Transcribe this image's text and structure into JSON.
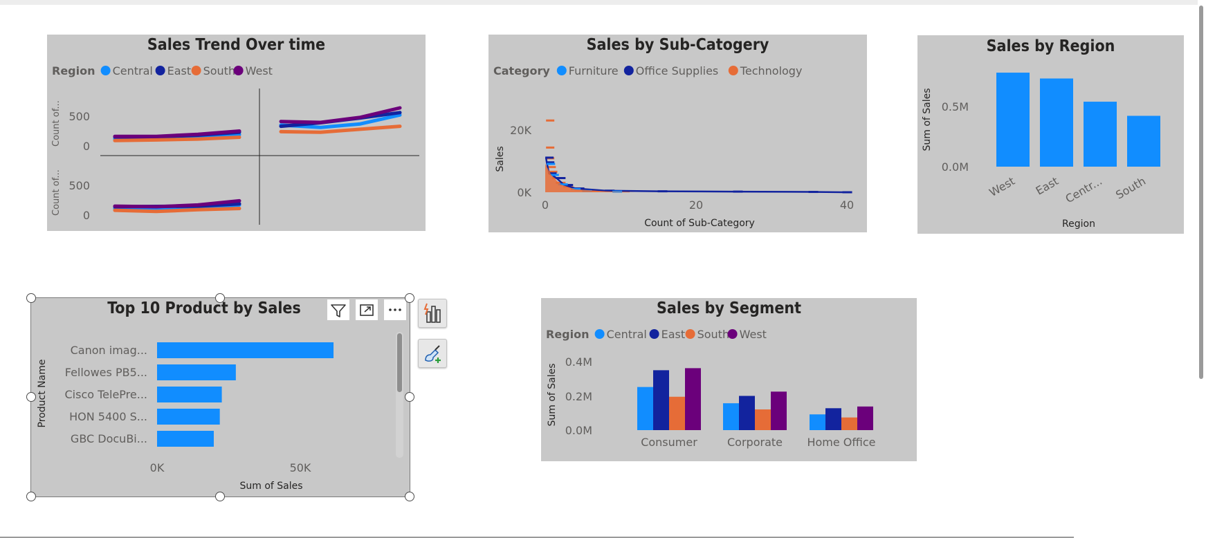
{
  "colors": {
    "central": "#118dff",
    "east": "#12239e",
    "south": "#e66c37",
    "west": "#6b007b",
    "panel_bg": "#c8c8c8",
    "single_bar": "#118dff"
  },
  "visual_header": {
    "filter_icon": "filter-icon",
    "focus_icon": "focus-mode-icon",
    "more_icon": "more-options-icon"
  },
  "side_panel": {
    "build_icon": "build-visual-icon",
    "format_icon": "format-visual-icon"
  },
  "chart_data": [
    {
      "id": "trend",
      "type": "line",
      "title": "Sales Trend Over time",
      "legend_title": "Region",
      "legend": [
        "Central",
        "East",
        "South",
        "West"
      ],
      "ylabel_top": "Count of...",
      "ylabel_bottom": "Count of...",
      "yticks": [
        "500",
        "0"
      ],
      "ylim": [
        -200,
        900
      ],
      "panels": [
        {
          "name": "top-left",
          "series": [
            {
              "name": "Central",
              "values": [
                120,
                125,
                150,
                190
              ]
            },
            {
              "name": "East",
              "values": [
                150,
                150,
                180,
                230
              ]
            },
            {
              "name": "South",
              "values": [
                90,
                100,
                115,
                145
              ]
            },
            {
              "name": "West",
              "values": [
                160,
                160,
                195,
                250
              ]
            }
          ]
        },
        {
          "name": "top-right",
          "series": [
            {
              "name": "Central",
              "values": [
                350,
                310,
                370,
                520
              ]
            },
            {
              "name": "East",
              "values": [
                330,
                390,
                470,
                560
              ]
            },
            {
              "name": "South",
              "values": [
                240,
                230,
                280,
                330
              ]
            },
            {
              "name": "West",
              "values": [
                410,
                395,
                480,
                640
              ]
            }
          ]
        },
        {
          "name": "bottom-left",
          "series": [
            {
              "name": "Central",
              "values": [
                110,
                115,
                125,
                170
              ]
            },
            {
              "name": "East",
              "values": [
                140,
                145,
                150,
                190
              ]
            },
            {
              "name": "South",
              "values": [
                80,
                60,
                90,
                110
              ]
            },
            {
              "name": "West",
              "values": [
                150,
                140,
                170,
                240
              ]
            }
          ]
        }
      ]
    },
    {
      "id": "subcategory",
      "type": "scatter",
      "title": "Sales by Sub-Catogery",
      "legend_title": "Category",
      "legend": [
        "Furniture",
        "Office Supplies",
        "Technology"
      ],
      "xlabel": "Count of Sub-Category",
      "ylabel": "Sales",
      "xticks": [
        "0",
        "20",
        "40"
      ],
      "yticks": [
        "20K",
        "0K"
      ],
      "xlim": [
        0,
        40
      ],
      "ylim": [
        0,
        23000
      ],
      "series": [
        {
          "name": "Technology",
          "points": [
            [
              0.2,
              22800
            ],
            [
              0.2,
              14200
            ],
            [
              0.2,
              10800
            ],
            [
              0.4,
              8000
            ],
            [
              0.6,
              6500
            ],
            [
              1,
              4500
            ],
            [
              1.5,
              3000
            ],
            [
              2.5,
              1800
            ],
            [
              4,
              900
            ],
            [
              6,
              500
            ],
            [
              10,
              300
            ]
          ]
        },
        {
          "name": "Office Supplies",
          "points": [
            [
              0.1,
              11000
            ],
            [
              0.2,
              9500
            ],
            [
              0.5,
              6000
            ],
            [
              1.5,
              4500
            ],
            [
              2.5,
              2300
            ],
            [
              4,
              1200
            ],
            [
              8,
              500
            ],
            [
              15,
              300
            ],
            [
              25,
              200
            ],
            [
              35,
              100
            ],
            [
              39.5,
              0
            ]
          ]
        },
        {
          "name": "Furniture",
          "points": [
            [
              0.3,
              9000
            ],
            [
              0.8,
              5500
            ],
            [
              1.8,
              2500
            ],
            [
              3.5,
              1000
            ],
            [
              5,
              400
            ],
            [
              9,
              200
            ]
          ]
        }
      ]
    },
    {
      "id": "region",
      "type": "bar",
      "title": "Sales by Region",
      "xlabel": "Region",
      "ylabel": "Sum of Sales",
      "categories": [
        "West",
        "East",
        "Centr...",
        "South"
      ],
      "values": [
        725000,
        680000,
        501000,
        392000
      ],
      "yticks": [
        "0.5M",
        "0.0M"
      ],
      "ylim": [
        0,
        800000
      ]
    },
    {
      "id": "products",
      "type": "bar",
      "orientation": "horizontal",
      "title": "Top 10 Product by Sales",
      "xlabel": "Sum of Sales",
      "ylabel": "Product Name",
      "categories": [
        "Canon imag...",
        "Fellowes PB5...",
        "Cisco TelePre...",
        "HON 5400 S...",
        "GBC DocuBi..."
      ],
      "values": [
        61600,
        27500,
        22600,
        21900,
        19800
      ],
      "xticks": [
        "0K",
        "50K"
      ],
      "xlim": [
        0,
        70000
      ]
    },
    {
      "id": "segment",
      "type": "bar",
      "title": "Sales by Segment",
      "legend_title": "Region",
      "legend": [
        "Central",
        "East",
        "South",
        "West"
      ],
      "ylabel": "Sum of Sales",
      "categories": [
        "Consumer",
        "Corporate",
        "Home Office"
      ],
      "series": [
        {
          "name": "Central",
          "values": [
            252000,
            157000,
            92000
          ]
        },
        {
          "name": "East",
          "values": [
            350000,
            200000,
            128000
          ]
        },
        {
          "name": "South",
          "values": [
            195000,
            121000,
            74000
          ]
        },
        {
          "name": "West",
          "values": [
            362000,
            225000,
            138000
          ]
        }
      ],
      "yticks": [
        "0.4M",
        "0.2M",
        "0.0M"
      ],
      "ylim": [
        0,
        400000
      ]
    }
  ]
}
